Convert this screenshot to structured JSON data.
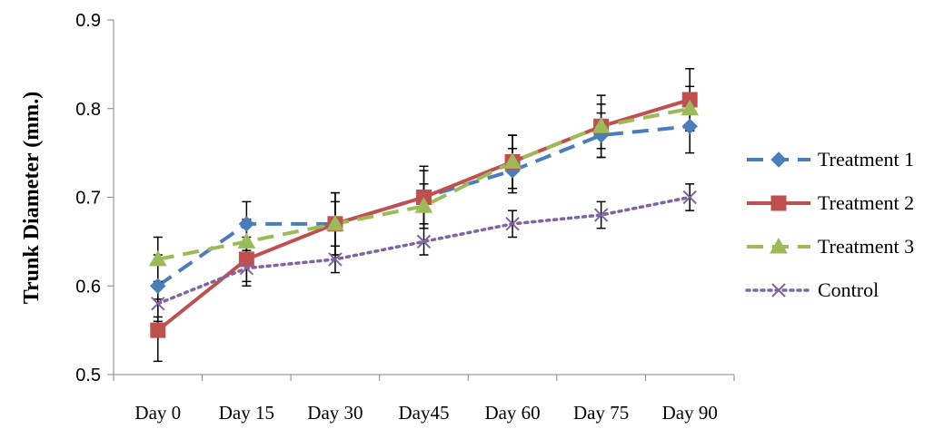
{
  "chart_data": {
    "type": "line",
    "ylabel": "Trunk Diameter (mm.)",
    "xlabel": "",
    "ylim": [
      0.5,
      0.9
    ],
    "yticks": [
      "0.5",
      "0.6",
      "0.7",
      "0.8",
      "0.9"
    ],
    "categories": [
      "Day 0",
      "Day 15",
      "Day 30",
      "Day45",
      "Day 60",
      "Day 75",
      "Day 90"
    ],
    "legend_position": "right",
    "series": [
      {
        "name": "Treatment 1",
        "color": "#4a7ebb",
        "line_style": "dashed",
        "marker": "diamond",
        "values": [
          0.6,
          0.67,
          0.67,
          0.7,
          0.73,
          0.77,
          0.78
        ],
        "error": [
          0.035,
          0.025,
          0.035,
          0.03,
          0.025,
          0.025,
          0.03
        ]
      },
      {
        "name": "Treatment 2",
        "color": "#c0504d",
        "line_style": "solid",
        "marker": "square",
        "values": [
          0.55,
          0.63,
          0.67,
          0.7,
          0.74,
          0.78,
          0.81
        ],
        "error": [
          0.035,
          0.025,
          0.035,
          0.035,
          0.03,
          0.035,
          0.035
        ]
      },
      {
        "name": "Treatment 3",
        "color": "#9bbb59",
        "line_style": "dashed",
        "marker": "triangle",
        "values": [
          0.63,
          0.65,
          0.67,
          0.69,
          0.74,
          0.78,
          0.8
        ],
        "error": [
          0.025,
          0.025,
          0.025,
          0.025,
          0.03,
          0.025,
          0.025
        ]
      },
      {
        "name": "Control",
        "color": "#8064a2",
        "line_style": "dotted",
        "marker": "x",
        "values": [
          0.58,
          0.62,
          0.63,
          0.65,
          0.67,
          0.68,
          0.7
        ],
        "error": [
          0.02,
          0.02,
          0.015,
          0.015,
          0.015,
          0.015,
          0.015
        ]
      }
    ]
  }
}
